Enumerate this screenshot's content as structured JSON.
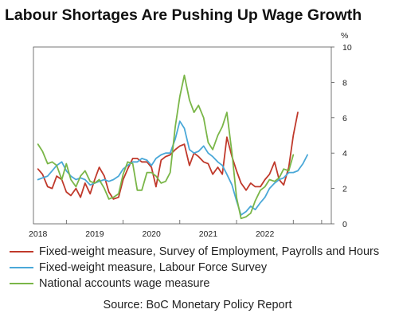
{
  "title": "Labour Shortages Are Pushing Up Wage Growth",
  "source": "Source: BoC Monetary Policy Report",
  "chart_data": {
    "type": "line",
    "y_unit": "%",
    "ylim": [
      0,
      10
    ],
    "yticks": [
      "0",
      "2",
      "4",
      "6",
      "8",
      "10"
    ],
    "x_range": [
      2017.42,
      2022.67
    ],
    "xticks": [
      {
        "label": "2018",
        "start": 2018
      },
      {
        "label": "2019",
        "start": 2019
      },
      {
        "label": "2020",
        "start": 2020
      },
      {
        "label": "2021",
        "start": 2021
      },
      {
        "label": "2022",
        "start": 2022
      }
    ],
    "grid": false,
    "legend_position": "bottom",
    "series": [
      {
        "name": "Fixed-weight measure, Survey of Employment, Payrolls and Hours",
        "color": "#c0392b",
        "points": [
          [
            2017.5,
            3.1
          ],
          [
            2017.58,
            2.8
          ],
          [
            2017.67,
            2.1
          ],
          [
            2017.75,
            2.0
          ],
          [
            2017.83,
            2.7
          ],
          [
            2017.92,
            2.5
          ],
          [
            2018.0,
            1.8
          ],
          [
            2018.08,
            1.6
          ],
          [
            2018.17,
            2.0
          ],
          [
            2018.25,
            1.5
          ],
          [
            2018.33,
            2.3
          ],
          [
            2018.42,
            1.7
          ],
          [
            2018.5,
            2.5
          ],
          [
            2018.58,
            3.2
          ],
          [
            2018.67,
            2.7
          ],
          [
            2018.75,
            1.8
          ],
          [
            2018.83,
            1.4
          ],
          [
            2018.92,
            1.5
          ],
          [
            2019.0,
            2.5
          ],
          [
            2019.08,
            3.1
          ],
          [
            2019.17,
            3.7
          ],
          [
            2019.25,
            3.7
          ],
          [
            2019.33,
            3.5
          ],
          [
            2019.42,
            3.5
          ],
          [
            2019.5,
            3.2
          ],
          [
            2019.58,
            2.1
          ],
          [
            2019.67,
            3.6
          ],
          [
            2019.75,
            3.8
          ],
          [
            2019.83,
            3.9
          ],
          [
            2019.92,
            4.2
          ],
          [
            2020.0,
            4.4
          ],
          [
            2020.08,
            4.5
          ],
          [
            2020.17,
            3.3
          ],
          [
            2020.25,
            4.0
          ],
          [
            2020.33,
            3.8
          ],
          [
            2020.42,
            3.5
          ],
          [
            2020.5,
            3.4
          ],
          [
            2020.58,
            2.8
          ],
          [
            2020.67,
            3.2
          ],
          [
            2020.75,
            2.8
          ],
          [
            2020.83,
            4.9
          ],
          [
            2020.92,
            3.8
          ],
          [
            2021.0,
            3.0
          ],
          [
            2021.08,
            2.3
          ],
          [
            2021.17,
            1.9
          ],
          [
            2021.25,
            2.3
          ],
          [
            2021.33,
            2.1
          ],
          [
            2021.42,
            2.1
          ],
          [
            2021.5,
            2.5
          ],
          [
            2021.58,
            2.8
          ],
          [
            2021.67,
            3.5
          ],
          [
            2021.75,
            2.5
          ],
          [
            2021.83,
            2.2
          ],
          [
            2021.92,
            3.2
          ],
          [
            2022.0,
            5.0
          ],
          [
            2022.08,
            6.3
          ]
        ]
      },
      {
        "name": "Fixed-weight measure, Labour Force Survey",
        "color": "#4aa8d8",
        "points": [
          [
            2017.5,
            2.5
          ],
          [
            2017.58,
            2.6
          ],
          [
            2017.67,
            2.7
          ],
          [
            2017.75,
            3.0
          ],
          [
            2017.83,
            3.3
          ],
          [
            2017.92,
            3.5
          ],
          [
            2018.0,
            3.0
          ],
          [
            2018.08,
            2.7
          ],
          [
            2018.17,
            2.5
          ],
          [
            2018.25,
            2.6
          ],
          [
            2018.33,
            2.5
          ],
          [
            2018.42,
            2.2
          ],
          [
            2018.5,
            2.3
          ],
          [
            2018.58,
            2.4
          ],
          [
            2018.67,
            2.5
          ],
          [
            2018.75,
            2.4
          ],
          [
            2018.83,
            2.5
          ],
          [
            2018.92,
            2.7
          ],
          [
            2019.0,
            3.1
          ],
          [
            2019.08,
            3.3
          ],
          [
            2019.17,
            3.5
          ],
          [
            2019.25,
            3.5
          ],
          [
            2019.33,
            3.7
          ],
          [
            2019.42,
            3.6
          ],
          [
            2019.5,
            3.3
          ],
          [
            2019.58,
            3.7
          ],
          [
            2019.67,
            3.9
          ],
          [
            2019.75,
            4.0
          ],
          [
            2019.83,
            4.0
          ],
          [
            2019.92,
            4.8
          ],
          [
            2020.0,
            5.8
          ],
          [
            2020.08,
            5.4
          ],
          [
            2020.17,
            4.2
          ],
          [
            2020.25,
            4.0
          ],
          [
            2020.33,
            4.1
          ],
          [
            2020.42,
            4.4
          ],
          [
            2020.5,
            4.0
          ],
          [
            2020.58,
            3.8
          ],
          [
            2020.67,
            3.5
          ],
          [
            2020.75,
            3.3
          ],
          [
            2020.83,
            2.8
          ],
          [
            2020.92,
            2.2
          ],
          [
            2021.0,
            1.3
          ],
          [
            2021.08,
            0.5
          ],
          [
            2021.17,
            0.7
          ],
          [
            2021.25,
            1.0
          ],
          [
            2021.33,
            0.8
          ],
          [
            2021.42,
            1.2
          ],
          [
            2021.5,
            1.5
          ],
          [
            2021.58,
            2.0
          ],
          [
            2021.67,
            2.3
          ],
          [
            2021.75,
            2.5
          ],
          [
            2021.83,
            2.6
          ],
          [
            2021.92,
            2.9
          ],
          [
            2022.0,
            2.9
          ],
          [
            2022.08,
            3.0
          ],
          [
            2022.17,
            3.4
          ],
          [
            2022.25,
            3.9
          ]
        ]
      },
      {
        "name": "National accounts wage measure",
        "color": "#7ab648",
        "points": [
          [
            2017.5,
            4.5
          ],
          [
            2017.58,
            4.1
          ],
          [
            2017.67,
            3.4
          ],
          [
            2017.75,
            3.5
          ],
          [
            2017.83,
            3.3
          ],
          [
            2017.92,
            2.5
          ],
          [
            2018.0,
            3.4
          ],
          [
            2018.08,
            2.5
          ],
          [
            2018.17,
            2.1
          ],
          [
            2018.25,
            2.7
          ],
          [
            2018.33,
            3.0
          ],
          [
            2018.42,
            2.4
          ],
          [
            2018.5,
            2.3
          ],
          [
            2018.58,
            2.5
          ],
          [
            2018.67,
            2.0
          ],
          [
            2018.75,
            1.4
          ],
          [
            2018.83,
            1.5
          ],
          [
            2018.92,
            1.7
          ],
          [
            2019.0,
            2.8
          ],
          [
            2019.08,
            3.5
          ],
          [
            2019.17,
            3.4
          ],
          [
            2019.25,
            1.9
          ],
          [
            2019.33,
            1.9
          ],
          [
            2019.42,
            2.9
          ],
          [
            2019.5,
            2.9
          ],
          [
            2019.58,
            2.7
          ],
          [
            2019.67,
            2.3
          ],
          [
            2019.75,
            2.4
          ],
          [
            2019.83,
            2.9
          ],
          [
            2019.92,
            5.5
          ],
          [
            2020.0,
            7.2
          ],
          [
            2020.08,
            8.4
          ],
          [
            2020.17,
            7.0
          ],
          [
            2020.25,
            6.3
          ],
          [
            2020.33,
            6.7
          ],
          [
            2020.42,
            6.0
          ],
          [
            2020.5,
            4.6
          ],
          [
            2020.58,
            4.2
          ],
          [
            2020.67,
            5.0
          ],
          [
            2020.75,
            5.5
          ],
          [
            2020.83,
            6.3
          ],
          [
            2020.92,
            4.0
          ],
          [
            2021.0,
            1.5
          ],
          [
            2021.08,
            0.3
          ],
          [
            2021.17,
            0.4
          ],
          [
            2021.25,
            0.6
          ],
          [
            2021.33,
            1.3
          ],
          [
            2021.42,
            1.9
          ],
          [
            2021.5,
            2.1
          ],
          [
            2021.58,
            2.5
          ],
          [
            2021.67,
            2.4
          ],
          [
            2021.75,
            2.6
          ],
          [
            2021.83,
            3.1
          ],
          [
            2021.92,
            3.0
          ],
          [
            2022.0,
            3.9
          ]
        ]
      }
    ]
  }
}
